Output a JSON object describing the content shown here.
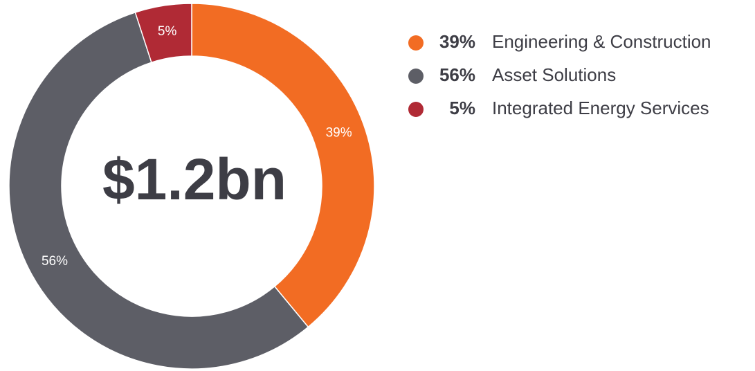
{
  "chart_data": {
    "type": "pie",
    "center_label": "$1.2bn",
    "categories": [
      "Engineering & Construction",
      "Asset Solutions",
      "Integrated Energy Services"
    ],
    "values": [
      39,
      56,
      5
    ],
    "value_labels": [
      "39%",
      "56%",
      "5%"
    ],
    "colors": [
      "#f26c23",
      "#5d5e66",
      "#b02a35"
    ],
    "legend": "top-right"
  }
}
